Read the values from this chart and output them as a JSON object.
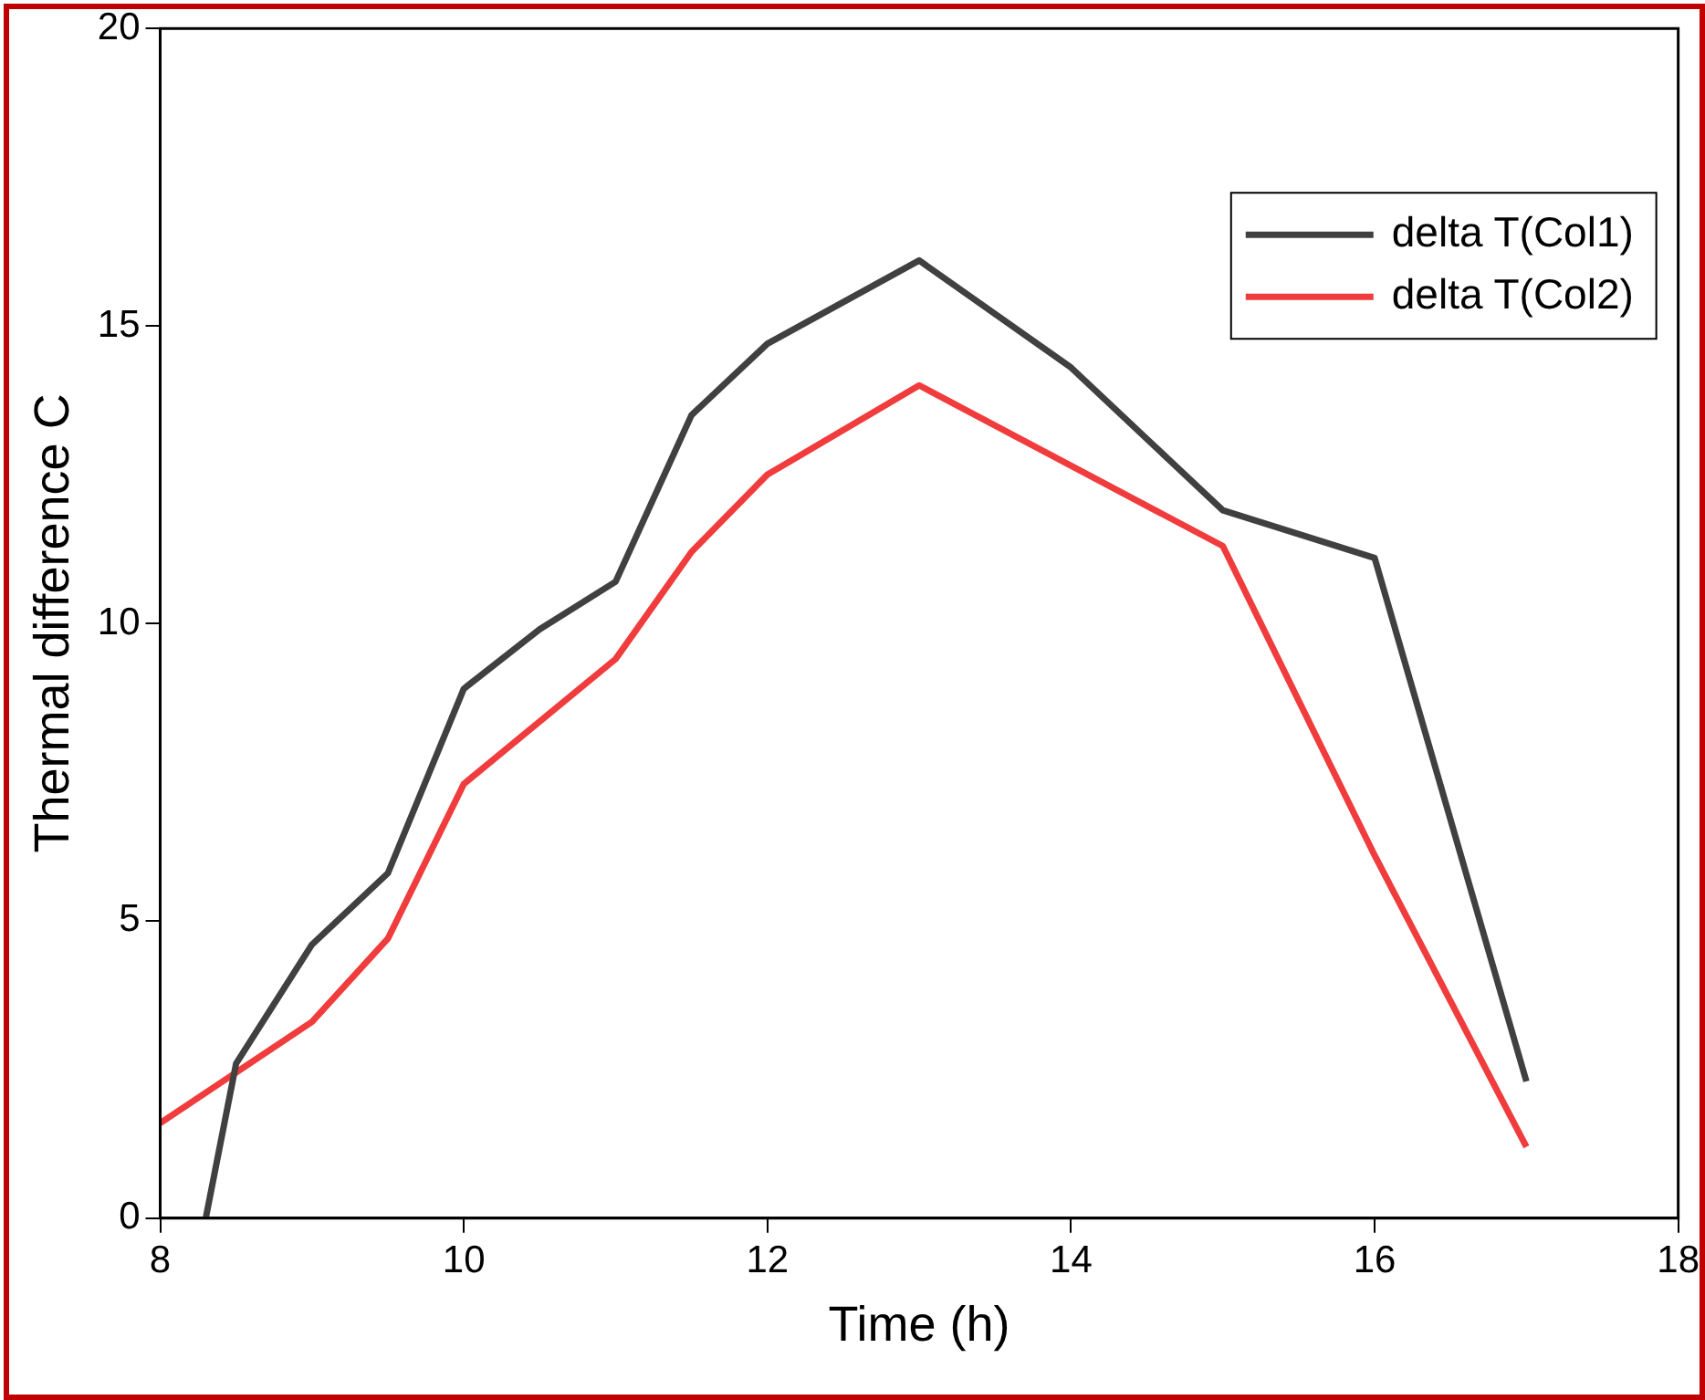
{
  "chart_data": {
    "type": "line",
    "xlabel": "Time (h)",
    "ylabel": "Thermal difference C",
    "xlim": [
      8,
      18
    ],
    "xticks": [
      8,
      10,
      12,
      14,
      16,
      18
    ],
    "ylim": [
      0,
      20
    ],
    "yticks": [
      0,
      5,
      10,
      15,
      20
    ],
    "grid": false,
    "legend": "top right",
    "marker": "none",
    "line_style": "solid",
    "series": [
      {
        "name": "delta T(Col1)",
        "color": "#404040",
        "x": [
          8.3,
          8.5,
          9,
          9.5,
          10,
          10.5,
          11,
          11.5,
          12,
          13,
          14,
          15,
          16,
          17
        ],
        "values": [
          0,
          2.6,
          4.6,
          5.8,
          8.9,
          9.9,
          10.7,
          13.5,
          14.7,
          16.1,
          14.3,
          11.9,
          11.1,
          2.3
        ]
      },
      {
        "name": "delta T(Col2)",
        "color": "#f03c3c",
        "x": [
          8,
          9,
          9.5,
          10,
          11,
          11.5,
          12,
          13,
          15,
          16,
          17
        ],
        "values": [
          1.6,
          3.3,
          4.7,
          7.3,
          9.4,
          11.2,
          12.5,
          14,
          11.3,
          6.1,
          1.2
        ]
      }
    ]
  }
}
